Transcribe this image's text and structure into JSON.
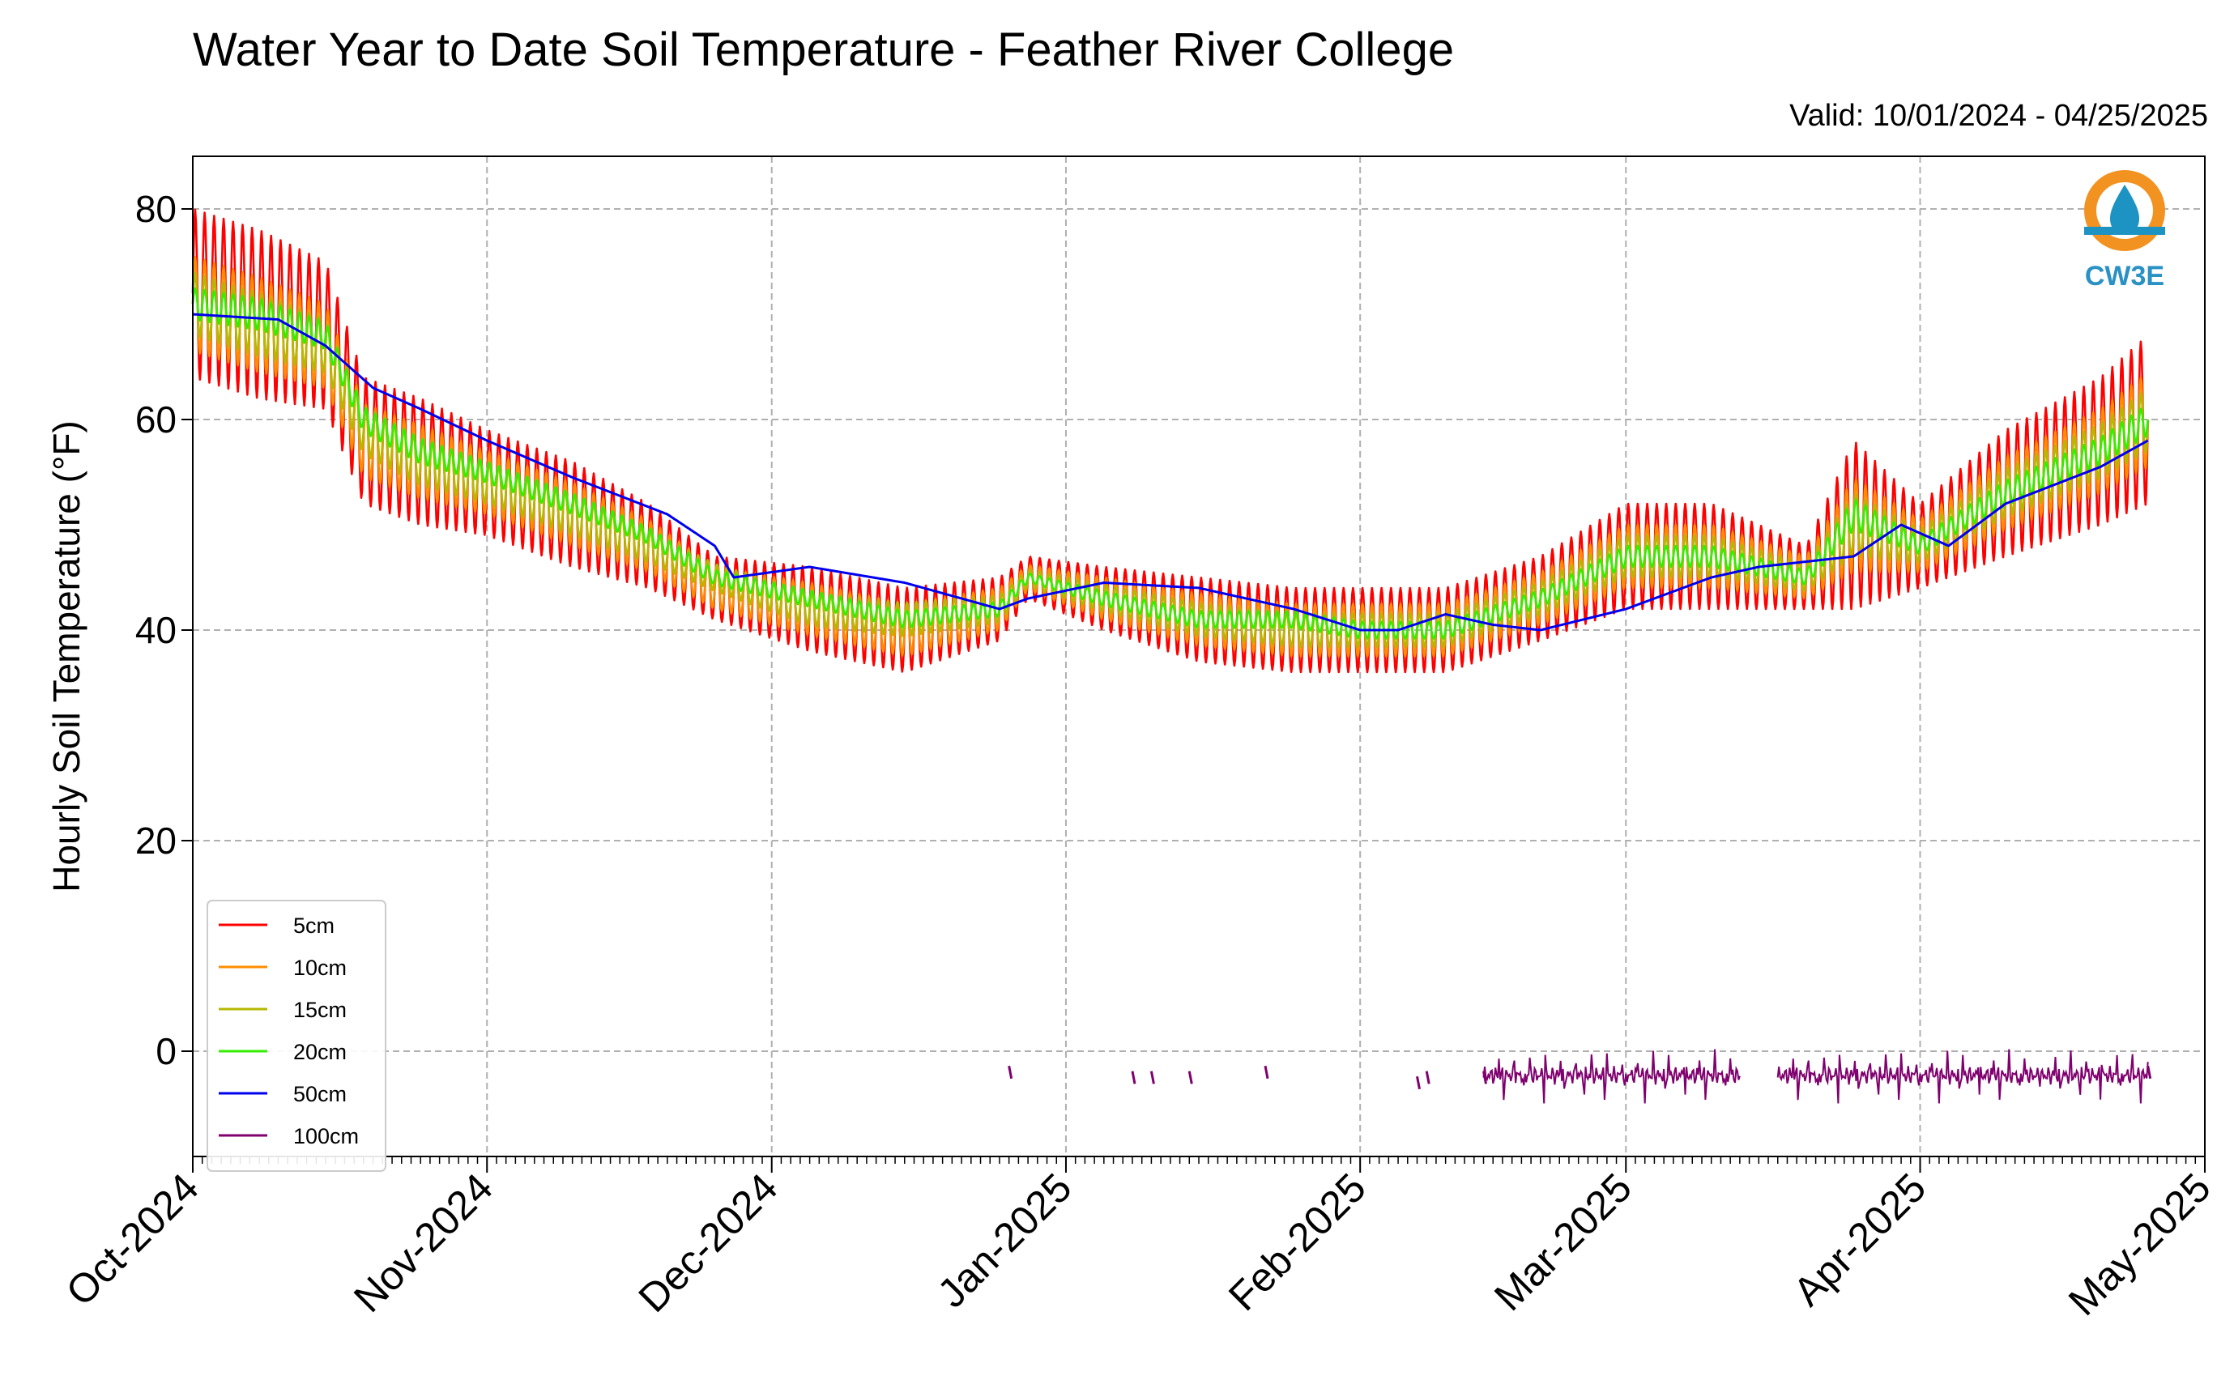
{
  "header": {
    "title": "Water Year to Date Soil Temperature - Feather River College",
    "valid": "Valid: 10/01/2024 - 04/25/2025"
  },
  "logo": {
    "text": "CW3E",
    "icon": "water-drop-logo-icon",
    "colors": {
      "ring": "#f29220",
      "drop": "#1c93c3",
      "text": "#2a91c4"
    }
  },
  "chart_data": {
    "type": "line",
    "title": "Water Year to Date Soil Temperature - Feather River College",
    "ylabel": "Hourly Soil Temperature (°F)",
    "xlabel": "",
    "ylim": [
      -10,
      85
    ],
    "xlim": [
      "2024-10-01",
      "2025-05-01"
    ],
    "yticks": [
      0,
      20,
      40,
      60,
      80
    ],
    "xticks": [
      "Oct-2024",
      "Nov-2024",
      "Dec-2024",
      "Jan-2025",
      "Feb-2025",
      "Mar-2025",
      "Apr-2025",
      "May-2025"
    ],
    "grid": true,
    "legend_position": "lower-left",
    "series": [
      {
        "name": "5cm",
        "color": "#ff0000",
        "x": [
          "2024-10-01",
          "2024-10-08",
          "2024-10-15",
          "2024-10-19",
          "2024-10-25",
          "2024-11-01",
          "2024-11-10",
          "2024-11-18",
          "2024-11-25",
          "2024-12-05",
          "2024-12-15",
          "2024-12-25",
          "2024-12-28",
          "2025-01-05",
          "2025-01-15",
          "2025-01-25",
          "2025-02-01",
          "2025-02-10",
          "2025-02-20",
          "2025-03-01",
          "2025-03-10",
          "2025-03-20",
          "2025-03-25",
          "2025-04-01",
          "2025-04-10",
          "2025-04-20",
          "2025-04-25"
        ],
        "mean": [
          72,
          70,
          68,
          58,
          56,
          54,
          51,
          48,
          44,
          42,
          40,
          42,
          45,
          43,
          41,
          40,
          40,
          40,
          43,
          47,
          47,
          45,
          50,
          48,
          53,
          57,
          60
        ],
        "amp": [
          8,
          8,
          7,
          6,
          6,
          5,
          5,
          4,
          3,
          4,
          4,
          3,
          2,
          3,
          4,
          4,
          4,
          4,
          4,
          5,
          5,
          3,
          8,
          4,
          6,
          7,
          8
        ]
      },
      {
        "name": "10cm",
        "color": "#ff8c00",
        "x": [
          "2024-10-01",
          "2024-10-08",
          "2024-10-15",
          "2024-10-19",
          "2024-10-25",
          "2024-11-01",
          "2024-11-10",
          "2024-11-18",
          "2024-11-25",
          "2024-12-05",
          "2024-12-15",
          "2024-12-25",
          "2024-12-28",
          "2025-01-05",
          "2025-01-15",
          "2025-01-25",
          "2025-02-01",
          "2025-02-10",
          "2025-02-20",
          "2025-03-01",
          "2025-03-10",
          "2025-03-20",
          "2025-03-25",
          "2025-04-01",
          "2025-04-10",
          "2025-04-20",
          "2025-04-25"
        ],
        "mean": [
          71,
          69,
          67,
          58,
          56,
          54,
          51,
          48,
          44,
          42,
          40,
          42,
          45,
          43,
          41,
          40,
          40,
          40,
          43,
          47,
          47,
          45,
          50,
          48,
          53,
          57,
          60
        ],
        "amp": [
          4.5,
          4.5,
          4,
          3.5,
          3.5,
          3,
          3,
          2.5,
          2,
          2.5,
          2.5,
          2,
          1.2,
          2,
          2.5,
          2.5,
          2.5,
          2.5,
          2.5,
          3,
          3,
          2,
          4.5,
          2.5,
          3.5,
          4,
          4.5
        ]
      },
      {
        "name": "15cm",
        "color": "#b5b800",
        "x": [
          "2024-10-01",
          "2024-10-08",
          "2024-10-15",
          "2024-10-19",
          "2024-10-25",
          "2024-11-01",
          "2024-11-10",
          "2024-11-18",
          "2024-11-25",
          "2024-12-05",
          "2024-12-15",
          "2024-12-25",
          "2024-12-28",
          "2025-01-05",
          "2025-01-15",
          "2025-01-25",
          "2025-02-01",
          "2025-02-10",
          "2025-02-20",
          "2025-03-01",
          "2025-03-10",
          "2025-03-20",
          "2025-03-25",
          "2025-04-01",
          "2025-04-10",
          "2025-04-20",
          "2025-04-25"
        ],
        "mean": [
          71,
          69,
          67,
          59,
          56,
          54,
          51,
          48,
          45,
          42,
          41,
          42,
          45,
          43,
          41,
          40,
          40,
          40,
          43,
          47,
          47,
          45,
          50,
          48,
          53,
          57,
          60
        ],
        "amp": [
          3,
          3,
          2.6,
          2.3,
          2.3,
          2,
          2,
          1.6,
          1.3,
          1.6,
          1.6,
          1.3,
          0.8,
          1.3,
          1.6,
          1.6,
          1.6,
          1.6,
          1.6,
          2,
          2,
          1.3,
          3,
          1.6,
          2.3,
          2.6,
          3
        ]
      },
      {
        "name": "20cm",
        "color": "#33ee00",
        "x": [
          "2024-10-01",
          "2024-10-08",
          "2024-10-15",
          "2024-10-19",
          "2024-10-25",
          "2024-11-01",
          "2024-11-10",
          "2024-11-18",
          "2024-11-25",
          "2024-12-05",
          "2024-12-15",
          "2024-12-25",
          "2024-12-28",
          "2025-01-05",
          "2025-01-15",
          "2025-01-25",
          "2025-02-01",
          "2025-02-10",
          "2025-02-20",
          "2025-03-01",
          "2025-03-10",
          "2025-03-20",
          "2025-03-25",
          "2025-04-01",
          "2025-04-10",
          "2025-04-20",
          "2025-04-25"
        ],
        "mean": [
          71,
          70,
          68,
          60,
          57,
          55,
          52,
          49,
          45,
          43,
          41,
          42,
          45,
          43,
          41,
          41,
          40,
          40,
          43,
          47,
          47,
          45,
          51,
          48,
          53,
          57,
          60
        ],
        "amp": [
          1.5,
          1.5,
          1.3,
          1.2,
          1.2,
          1,
          1,
          0.8,
          0.7,
          0.8,
          0.8,
          0.7,
          0.4,
          0.7,
          0.8,
          0.8,
          0.8,
          0.8,
          0.8,
          1,
          1,
          0.7,
          1.5,
          0.8,
          1.2,
          1.3,
          1.5
        ]
      },
      {
        "name": "50cm",
        "color": "#0000ee",
        "x": [
          "2024-10-01",
          "2024-10-10",
          "2024-10-15",
          "2024-10-20",
          "2024-10-25",
          "2024-11-01",
          "2024-11-10",
          "2024-11-20",
          "2024-11-25",
          "2024-11-27",
          "2024-12-05",
          "2024-12-15",
          "2024-12-25",
          "2024-12-28",
          "2025-01-05",
          "2025-01-15",
          "2025-01-25",
          "2025-02-01",
          "2025-02-05",
          "2025-02-10",
          "2025-02-15",
          "2025-02-20",
          "2025-03-01",
          "2025-03-10",
          "2025-03-15",
          "2025-03-20",
          "2025-03-25",
          "2025-03-30",
          "2025-04-04",
          "2025-04-10",
          "2025-04-20",
          "2025-04-25"
        ],
        "y": [
          70,
          69.5,
          67,
          63,
          61,
          58,
          54.5,
          51,
          48,
          45,
          46,
          44.5,
          42,
          43,
          44.5,
          44,
          42,
          40,
          40,
          41.5,
          40.5,
          40,
          42,
          45,
          46,
          46.5,
          47,
          50,
          48,
          52,
          55.5,
          58
        ],
        "amp": 0
      },
      {
        "name": "100cm",
        "color": "#7f006e",
        "type": "sparse",
        "x": [
          "2024-12-26",
          "2025-01-08",
          "2025-01-10",
          "2025-01-14",
          "2025-01-22",
          "2025-02-07",
          "2025-02-08",
          "2025-02-14",
          "2025-04-25"
        ],
        "y": [
          -2,
          -2.5,
          -2.5,
          -2.5,
          -2,
          -3,
          -2.5,
          -2.5,
          -2
        ],
        "segments": [
          [
            "2025-02-14",
            "2025-03-13"
          ],
          [
            "2025-03-17",
            "2025-04-25"
          ]
        ],
        "mean": -2.3
      }
    ]
  }
}
